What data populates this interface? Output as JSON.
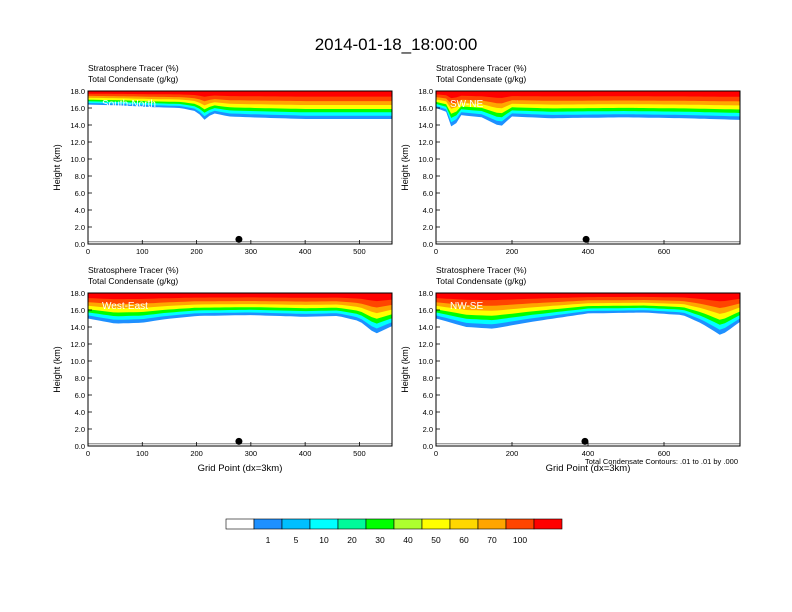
{
  "figure": {
    "title": "2014-01-18_18:00:00",
    "contour_note": "Total Condensate Contours: .01 to .01 by .000"
  },
  "chart_data": [
    {
      "type": "heatmap",
      "label": "South-North",
      "line1": "Stratosphere Tracer   (%)",
      "line2": "Total Condensate   (g/kg)",
      "ylabel": "Height (km)",
      "xlabel": "",
      "xlim": [
        0,
        560
      ],
      "ylim": [
        0,
        18
      ],
      "xticks": [
        0,
        100,
        200,
        300,
        400,
        500
      ],
      "yticks": [
        0.0,
        2.0,
        4.0,
        6.0,
        8.0,
        10.0,
        12.0,
        14.0,
        16.0,
        18.0
      ],
      "surface_marker_x": 278,
      "tracer_base_km": [
        [
          0,
          16.4
        ],
        [
          60,
          16.3
        ],
        [
          120,
          16.1
        ],
        [
          170,
          16.0
        ],
        [
          200,
          15.6
        ],
        [
          215,
          14.6
        ],
        [
          230,
          15.4
        ],
        [
          260,
          15.0
        ],
        [
          300,
          14.9
        ],
        [
          400,
          14.7
        ],
        [
          500,
          14.7
        ],
        [
          560,
          14.7
        ]
      ]
    },
    {
      "type": "heatmap",
      "label": "SW-NE",
      "line1": "Stratosphere Tracer   (%)",
      "line2": "Total Condensate   (g/kg)",
      "ylabel": "Height (km)",
      "xlabel": "",
      "xlim": [
        0,
        800
      ],
      "ylim": [
        0,
        18
      ],
      "xticks": [
        0,
        200,
        400,
        600
      ],
      "yticks": [
        0.0,
        2.0,
        4.0,
        6.0,
        8.0,
        10.0,
        12.0,
        14.0,
        16.0,
        18.0
      ],
      "surface_marker_x": 395,
      "tracer_base_km": [
        [
          0,
          16.0
        ],
        [
          30,
          15.5
        ],
        [
          45,
          13.0
        ],
        [
          60,
          15.2
        ],
        [
          120,
          14.9
        ],
        [
          170,
          13.8
        ],
        [
          200,
          15.0
        ],
        [
          300,
          14.8
        ],
        [
          500,
          14.9
        ],
        [
          650,
          14.8
        ],
        [
          800,
          14.6
        ]
      ]
    },
    {
      "type": "heatmap",
      "label": "West-East",
      "line1": "Stratosphere Tracer   (%)",
      "line2": "Total Condensate   (g/kg)",
      "ylabel": "Height (km)",
      "xlabel": "Grid Point (dx=3km)",
      "xlim": [
        0,
        560
      ],
      "ylim": [
        0,
        18
      ],
      "xticks": [
        0,
        100,
        200,
        300,
        400,
        500
      ],
      "yticks": [
        0.0,
        2.0,
        4.0,
        6.0,
        8.0,
        10.0,
        12.0,
        14.0,
        16.0,
        18.0
      ],
      "surface_marker_x": 278,
      "tracer_base_km": [
        [
          0,
          15.0
        ],
        [
          50,
          14.4
        ],
        [
          100,
          14.5
        ],
        [
          140,
          14.9
        ],
        [
          200,
          15.3
        ],
        [
          300,
          15.4
        ],
        [
          400,
          15.2
        ],
        [
          460,
          15.3
        ],
        [
          500,
          14.7
        ],
        [
          530,
          13.2
        ],
        [
          560,
          14.1
        ]
      ]
    },
    {
      "type": "heatmap",
      "label": "NW-SE",
      "line1": "Stratosphere Tracer   (%)",
      "line2": "Total Condensate   (g/kg)",
      "ylabel": "Height (km)",
      "xlabel": "Grid Point (dx=3km)",
      "xlim": [
        0,
        800
      ],
      "ylim": [
        0,
        18
      ],
      "xticks": [
        0,
        200,
        400,
        600
      ],
      "yticks": [
        0.0,
        2.0,
        4.0,
        6.0,
        8.0,
        10.0,
        12.0,
        14.0,
        16.0,
        18.0
      ],
      "surface_marker_x": 392,
      "tracer_base_km": [
        [
          0,
          15.0
        ],
        [
          80,
          14.0
        ],
        [
          150,
          13.8
        ],
        [
          250,
          14.6
        ],
        [
          400,
          15.6
        ],
        [
          550,
          15.7
        ],
        [
          650,
          15.4
        ],
        [
          700,
          14.4
        ],
        [
          750,
          13.0
        ],
        [
          800,
          14.6
        ]
      ]
    }
  ],
  "colorbar": {
    "levels": [
      "1",
      "5",
      "10",
      "20",
      "30",
      "40",
      "50",
      "60",
      "70",
      "100"
    ],
    "colors": [
      "#ffffff",
      "#1e90ff",
      "#00bfff",
      "#00ffff",
      "#00fa9a",
      "#00ff00",
      "#adff2f",
      "#ffff00",
      "#ffd700",
      "#ffa500",
      "#ff4500",
      "#ff0000"
    ]
  }
}
